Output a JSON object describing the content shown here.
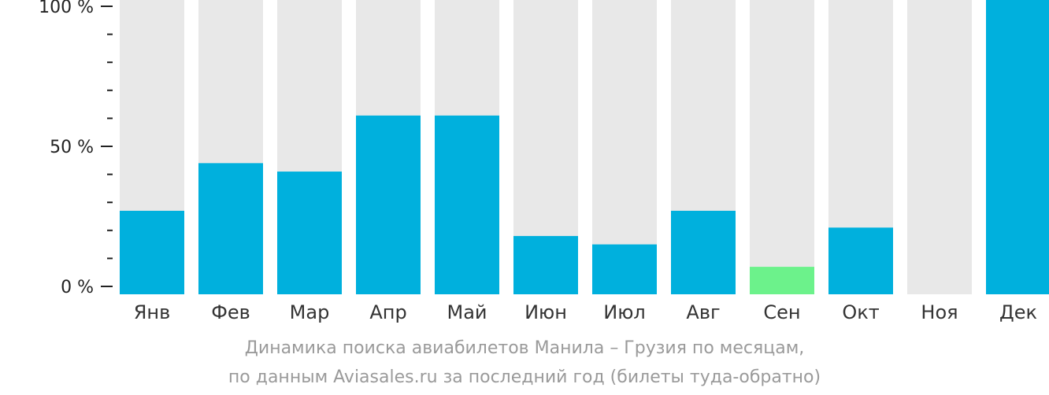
{
  "chart_data": {
    "type": "bar",
    "categories": [
      "Янв",
      "Фев",
      "Мар",
      "Апр",
      "Май",
      "Июн",
      "Июл",
      "Авг",
      "Сен",
      "Окт",
      "Ноя",
      "Дек"
    ],
    "values": [
      27,
      44,
      41,
      61,
      61,
      18,
      15,
      27,
      7,
      21,
      0,
      100
    ],
    "ylim": [
      0,
      100
    ],
    "y_ticks": [
      {
        "value": 0,
        "label": "0 %"
      },
      {
        "value": 50,
        "label": "50 %"
      },
      {
        "value": 100,
        "label": "100 %"
      }
    ],
    "minor_tick_step": 10,
    "highlight_index": 8,
    "caption_lines": [
      "Динамика поиска авиабилетов Манила – Грузия по месяцам,",
      "по данным Aviasales.ru за последний год (билеты туда-обратно)"
    ]
  },
  "colors": {
    "bar": "#00b0dd",
    "highlight": "#6cf28b",
    "background_bar": "#e8e8e8",
    "axis": "#222222"
  }
}
